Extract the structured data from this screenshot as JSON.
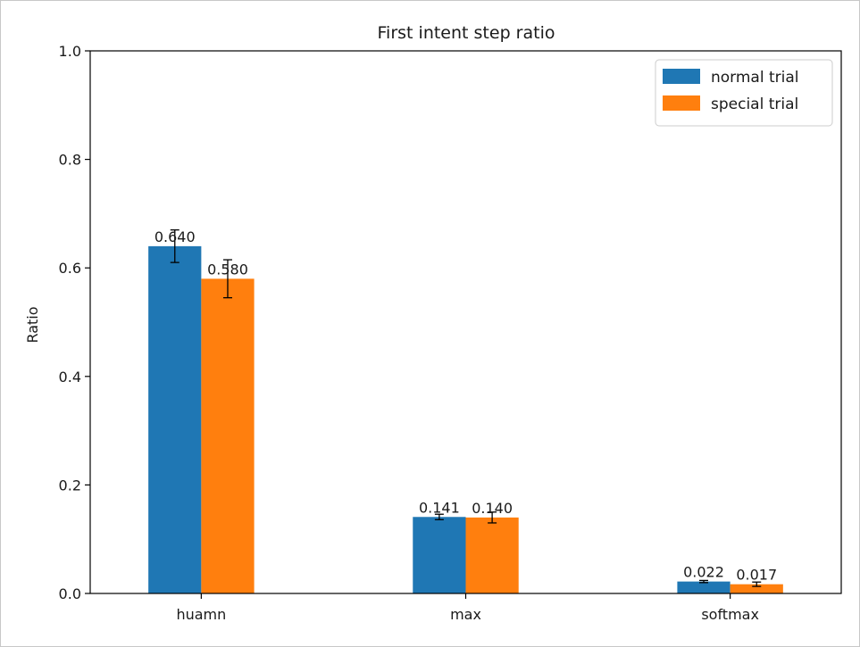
{
  "chart_data": {
    "type": "bar",
    "title": "First intent step ratio",
    "xlabel": "",
    "ylabel": "Ratio",
    "ylim": [
      0,
      1.0
    ],
    "yticks": [
      "0.0",
      "0.2",
      "0.4",
      "0.6",
      "0.8",
      "1.0"
    ],
    "categories": [
      "huamn",
      "max",
      "softmax"
    ],
    "series": [
      {
        "name": "normal trial",
        "color": "#1f77b4",
        "values": [
          0.64,
          0.141,
          0.022
        ],
        "errors": [
          0.03,
          0.005,
          0.002
        ],
        "labels": [
          "0.640",
          "0.141",
          "0.022"
        ]
      },
      {
        "name": "special trial",
        "color": "#ff7f0e",
        "values": [
          0.58,
          0.14,
          0.017
        ],
        "errors": [
          0.035,
          0.01,
          0.004
        ],
        "labels": [
          "0.580",
          "0.140",
          "0.017"
        ]
      }
    ],
    "grid": false,
    "legend": "top-right"
  }
}
